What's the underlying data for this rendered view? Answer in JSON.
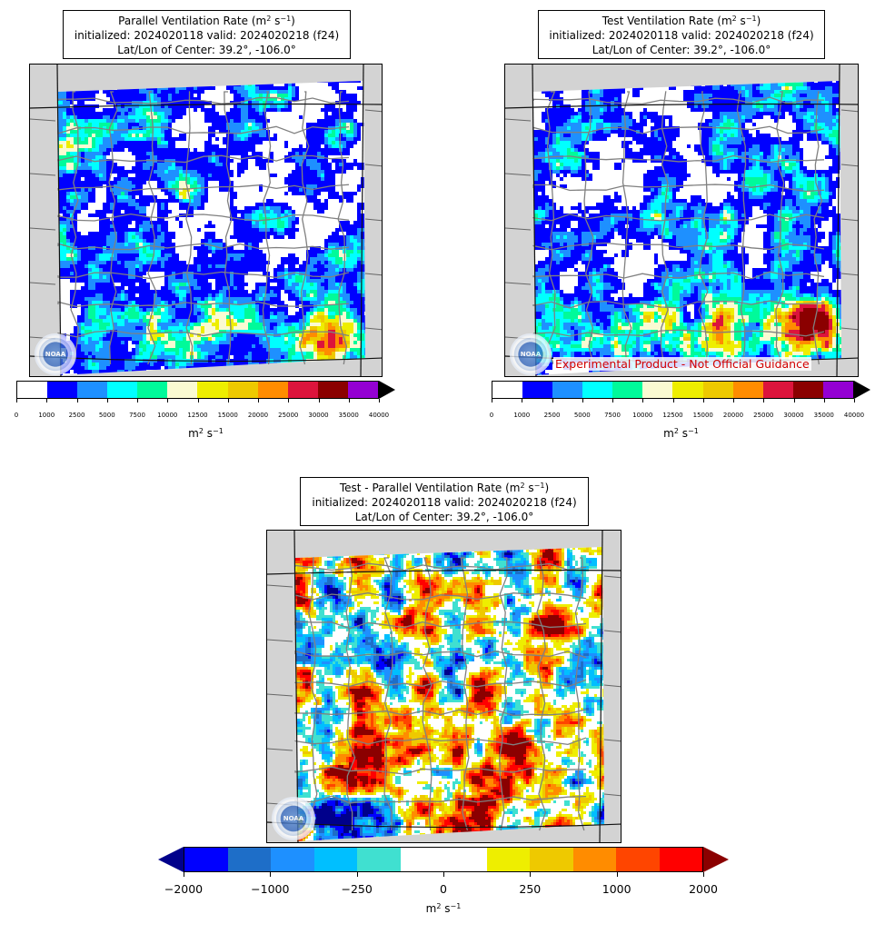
{
  "panels": [
    {
      "id": "parallel",
      "title_prefix": "Parallel Ventilation Rate (m",
      "title_sup1": "2",
      "title_mid": " s",
      "title_sup2": "−1",
      "title_suffix": ")",
      "line2": "initialized: 2024020118 valid: 2024020218 (f24)",
      "line3": "Lat/Lon of Center: 39.2°, -106.0°"
    },
    {
      "id": "test",
      "title_prefix": "Test Ventilation Rate (m",
      "title_sup1": "2",
      "title_mid": " s",
      "title_sup2": "−1",
      "title_suffix": ")",
      "line2": "initialized: 2024020118 valid: 2024020218 (f24)",
      "line3": "Lat/Lon of Center: 39.2°, -106.0°",
      "watermark": "Experimental Product - Not Official Guidance"
    },
    {
      "id": "difference",
      "title_prefix": "Test - Parallel Ventilation Rate (m",
      "title_sup1": "2",
      "title_mid": " s",
      "title_sup2": "−1",
      "title_suffix": ")",
      "line2": "initialized: 2024020118 valid: 2024020218 (f24)",
      "line3": "Lat/Lon of Center: 39.2°, -106.0°"
    }
  ],
  "logo_text": "NOAA",
  "colorbar_top": {
    "colors": [
      "#ffffff",
      "#0000ff",
      "#1e90ff",
      "#00ffff",
      "#00fa9a",
      "#fafad2",
      "#eeee00",
      "#eec900",
      "#ff8c00",
      "#dc143c",
      "#8b0000",
      "#9400d3"
    ],
    "extend_color": "#000000",
    "ticks": [
      "0",
      "1000",
      "2500",
      "5000",
      "7500",
      "10000",
      "12500",
      "15000",
      "20000",
      "25000",
      "30000",
      "35000",
      "40000"
    ],
    "unit_base": "m",
    "unit_sup1": "2",
    "unit_mid": " s",
    "unit_sup2": "−1"
  },
  "colorbar_diff": {
    "colors": [
      "#0000ff",
      "#1e6ec8",
      "#1e90ff",
      "#00bfff",
      "#40e0d0",
      "#ffffff",
      "#ffffff",
      "#eeee00",
      "#eec900",
      "#ff8c00",
      "#ff4500",
      "#ff0000"
    ],
    "extend_low_color": "#00008b",
    "extend_high_color": "#8b0000",
    "ticks": [
      "−2000",
      "−1000",
      "−250",
      "0",
      "250",
      "1000",
      "2000"
    ],
    "unit_base": "m",
    "unit_sup1": "2",
    "unit_mid": " s",
    "unit_sup2": "−1"
  }
}
